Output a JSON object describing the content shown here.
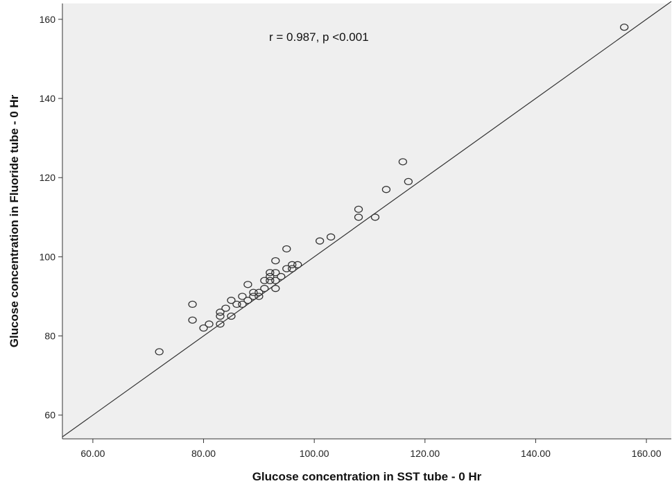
{
  "chart_data": {
    "type": "scatter",
    "title": "",
    "annotation": "r = 0.987, p <0.001",
    "xlabel": "Glucose concentration in SST tube - 0 Hr",
    "ylabel": "Glucose concentration in Fluoride tube - 0 Hr",
    "xlim": [
      54.5,
      164.5
    ],
    "ylim": [
      54,
      164
    ],
    "x_ticks": [
      60,
      80,
      100,
      120,
      140,
      160
    ],
    "x_tick_labels": [
      "60.00",
      "80.00",
      "100.00",
      "120.00",
      "140.00",
      "160.00"
    ],
    "y_ticks": [
      60,
      80,
      100,
      120,
      140,
      160
    ],
    "y_tick_labels": [
      "60",
      "80",
      "100",
      "120",
      "140",
      "160"
    ],
    "grid": false,
    "plot_background": "#efefef",
    "marker_color": "#333333",
    "reference_line": {
      "from": [
        54.5,
        54.5
      ],
      "to": [
        164.5,
        164.5
      ]
    },
    "points": [
      [
        72,
        76
      ],
      [
        78,
        88
      ],
      [
        78,
        84
      ],
      [
        80,
        82
      ],
      [
        81,
        83
      ],
      [
        83,
        86
      ],
      [
        83,
        85
      ],
      [
        83,
        83
      ],
      [
        84,
        87
      ],
      [
        85,
        89
      ],
      [
        85,
        85
      ],
      [
        86,
        88
      ],
      [
        87,
        90
      ],
      [
        87,
        88
      ],
      [
        88,
        93
      ],
      [
        88,
        89
      ],
      [
        89,
        91
      ],
      [
        89,
        90
      ],
      [
        90,
        91
      ],
      [
        90,
        90
      ],
      [
        91,
        94
      ],
      [
        91,
        92
      ],
      [
        92,
        96
      ],
      [
        92,
        95
      ],
      [
        92,
        94
      ],
      [
        93,
        99
      ],
      [
        93,
        96
      ],
      [
        93,
        94
      ],
      [
        93,
        92
      ],
      [
        94,
        95
      ],
      [
        95,
        102
      ],
      [
        95,
        97
      ],
      [
        96,
        98
      ],
      [
        96,
        97
      ],
      [
        97,
        98
      ],
      [
        101,
        104
      ],
      [
        103,
        105
      ],
      [
        108,
        112
      ],
      [
        108,
        110
      ],
      [
        111,
        110
      ],
      [
        113,
        117
      ],
      [
        116,
        124
      ],
      [
        117,
        119
      ],
      [
        156,
        158
      ]
    ]
  }
}
